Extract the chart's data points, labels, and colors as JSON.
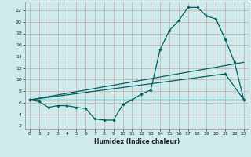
{
  "xlabel": "Humidex (Indice chaleur)",
  "ylabel": "",
  "bg_color": "#ceeaea",
  "grid_color": "#b8d8d8",
  "line_color": "#006060",
  "xlim": [
    -0.5,
    23.5
  ],
  "ylim": [
    1.5,
    23.5
  ],
  "yticks": [
    2,
    4,
    6,
    8,
    10,
    12,
    14,
    16,
    18,
    20,
    22
  ],
  "xticks": [
    0,
    1,
    2,
    3,
    4,
    5,
    6,
    7,
    8,
    9,
    10,
    11,
    12,
    13,
    14,
    15,
    16,
    17,
    18,
    19,
    20,
    21,
    22,
    23
  ],
  "series": [
    {
      "x": [
        0,
        1,
        2,
        3,
        4,
        5,
        6,
        7,
        8,
        9,
        10,
        11,
        12,
        13,
        14,
        15,
        16,
        17,
        18,
        19,
        20,
        21,
        22,
        23
      ],
      "y": [
        6.5,
        6.2,
        5.2,
        5.5,
        5.5,
        5.2,
        5.0,
        3.2,
        3.0,
        3.0,
        5.7,
        6.5,
        7.5,
        8.2,
        15.2,
        18.5,
        20.2,
        22.5,
        22.5,
        21.0,
        20.5,
        17.0,
        13.0,
        6.5
      ],
      "marker": "D",
      "markersize": 1.8,
      "linewidth": 0.9,
      "has_marker": true
    },
    {
      "x": [
        0,
        23
      ],
      "y": [
        6.5,
        6.5
      ],
      "marker": null,
      "markersize": 0,
      "linewidth": 0.9,
      "has_marker": false
    },
    {
      "x": [
        0,
        23
      ],
      "y": [
        6.5,
        13.0
      ],
      "marker": null,
      "markersize": 0,
      "linewidth": 0.9,
      "has_marker": false
    },
    {
      "x": [
        0,
        21,
        23
      ],
      "y": [
        6.5,
        11.0,
        6.5
      ],
      "marker": "D",
      "markersize": 1.8,
      "linewidth": 0.9,
      "has_marker": true
    }
  ]
}
